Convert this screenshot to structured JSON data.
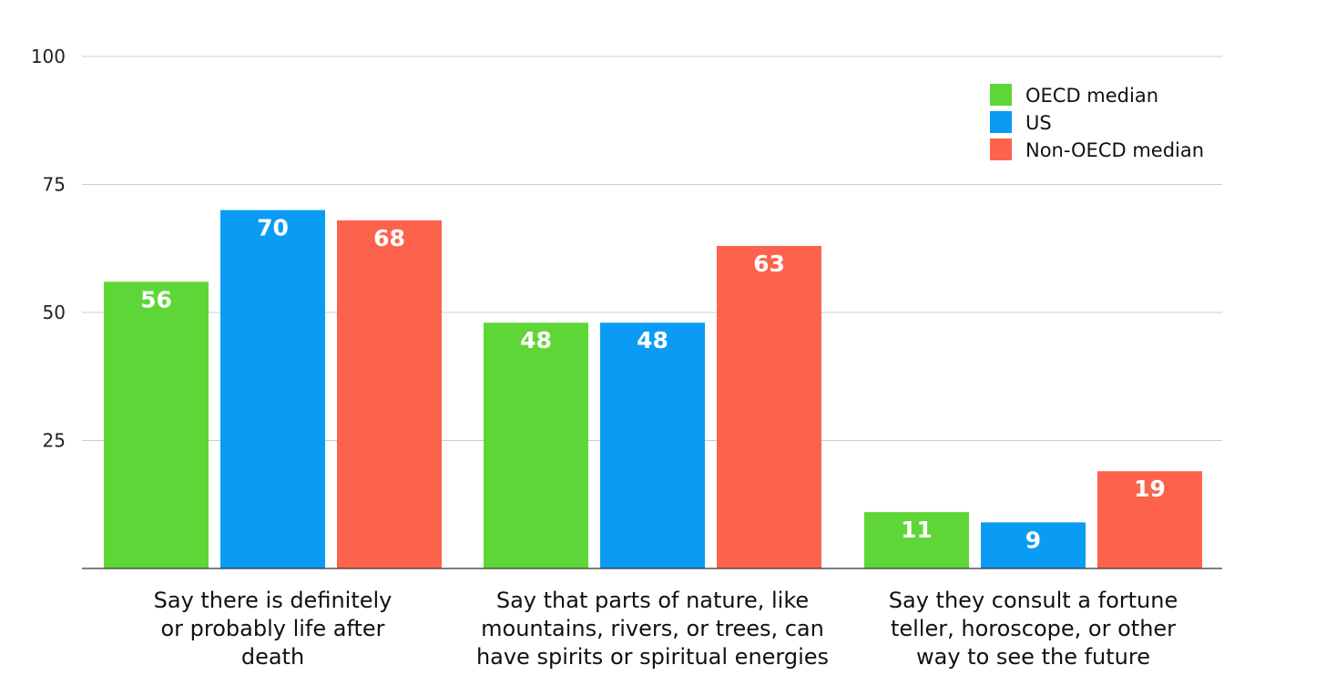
{
  "chart_data": {
    "type": "bar",
    "title": "",
    "xlabel": "",
    "ylabel": "",
    "ylim": [
      0,
      100
    ],
    "yticks": [
      "25",
      "50",
      "75",
      "100"
    ],
    "grid": true,
    "legend_position": "top-right",
    "categories": [
      [
        "Say there is definitely",
        "or probably life after",
        "death"
      ],
      [
        "Say that parts of nature, like",
        "mountains, rivers, or trees, can",
        "have spirits or spiritual energies"
      ],
      [
        "Say they consult a fortune",
        "teller, horoscope, or other",
        "way to see the future"
      ]
    ],
    "series": [
      {
        "name": "OECD median",
        "color": "#5fd637",
        "values": [
          56,
          48,
          11
        ]
      },
      {
        "name": "US",
        "color": "#0a9bf5",
        "values": [
          70,
          48,
          9
        ]
      },
      {
        "name": "Non-OECD median",
        "color": "#fd634c",
        "values": [
          68,
          63,
          19
        ]
      }
    ]
  }
}
